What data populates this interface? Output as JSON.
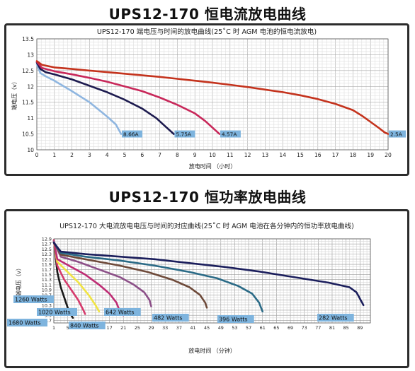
{
  "page": {
    "title1": "UPS12-170 恒电流放电曲线",
    "title2": "UPS12-170 恒功率放电曲线"
  },
  "chart_data": [
    {
      "type": "line",
      "title": "UPS12-170 端电压与时间的放电曲线(25˚C 时 AGM 电池的恒电流放电)",
      "xlabel": "放电时间 （小时）",
      "ylabel": "端电压（v）",
      "xlim": [
        0,
        20
      ],
      "ylim": [
        10,
        13.5
      ],
      "x_ticks": [
        0,
        1,
        2,
        3,
        4,
        5,
        6,
        7,
        8,
        9,
        10,
        11,
        12,
        13,
        14,
        15,
        16,
        17,
        18,
        19,
        20
      ],
      "y_ticks": [
        10,
        10.5,
        11,
        11.5,
        12,
        12.5,
        13,
        13.5
      ],
      "grid": true,
      "series": [
        {
          "name": "8.66A",
          "color": "#8fb6e0",
          "points": [
            [
              0,
              12.7
            ],
            [
              0.2,
              12.42
            ],
            [
              0.5,
              12.32
            ],
            [
              1,
              12.18
            ],
            [
              2,
              11.85
            ],
            [
              3,
              11.5
            ],
            [
              4,
              11.05
            ],
            [
              4.5,
              10.8
            ],
            [
              4.8,
              10.5
            ]
          ]
        },
        {
          "name": "5.75A",
          "color": "#1d1b4f",
          "points": [
            [
              0,
              12.75
            ],
            [
              0.2,
              12.55
            ],
            [
              0.5,
              12.45
            ],
            [
              1,
              12.38
            ],
            [
              2,
              12.22
            ],
            [
              3,
              12.02
            ],
            [
              4,
              11.82
            ],
            [
              5,
              11.58
            ],
            [
              6,
              11.3
            ],
            [
              6.8,
              11.0
            ],
            [
              7.3,
              10.75
            ],
            [
              7.8,
              10.5
            ]
          ]
        },
        {
          "name": "4.57A",
          "color": "#c8285a",
          "points": [
            [
              0,
              12.78
            ],
            [
              0.3,
              12.58
            ],
            [
              1,
              12.48
            ],
            [
              2,
              12.38
            ],
            [
              3,
              12.27
            ],
            [
              4,
              12.15
            ],
            [
              5,
              12.0
            ],
            [
              6,
              11.85
            ],
            [
              7,
              11.65
            ],
            [
              8,
              11.42
            ],
            [
              9,
              11.15
            ],
            [
              9.6,
              10.9
            ],
            [
              10,
              10.7
            ],
            [
              10.4,
              10.5
            ]
          ]
        },
        {
          "name": "2.5A",
          "color": "#c4331d",
          "points": [
            [
              0,
              12.8
            ],
            [
              0.3,
              12.68
            ],
            [
              1,
              12.6
            ],
            [
              2,
              12.55
            ],
            [
              3,
              12.5
            ],
            [
              4,
              12.45
            ],
            [
              5,
              12.4
            ],
            [
              6,
              12.35
            ],
            [
              7,
              12.3
            ],
            [
              8,
              12.24
            ],
            [
              9,
              12.18
            ],
            [
              10,
              12.12
            ],
            [
              11,
              12.05
            ],
            [
              12,
              11.98
            ],
            [
              13,
              11.9
            ],
            [
              14,
              11.82
            ],
            [
              15,
              11.72
            ],
            [
              16,
              11.6
            ],
            [
              17,
              11.45
            ],
            [
              18,
              11.25
            ],
            [
              18.5,
              11.08
            ],
            [
              19,
              10.88
            ],
            [
              19.5,
              10.68
            ],
            [
              19.8,
              10.55
            ],
            [
              20,
              10.5
            ]
          ]
        }
      ]
    },
    {
      "type": "line",
      "title": "UPS12-170 大电流放电电压与时间的对应曲线(25˚C 时 AGM 电池在各分钟内的恒功率放电曲线)",
      "xlabel": "放电时间 （分钟）",
      "ylabel": "端电压（v）",
      "ylim": [
        9.6,
        12.9
      ],
      "x_ticks": [
        "1",
        "5",
        "9",
        "13",
        "17",
        "21",
        "25",
        "29",
        "33",
        "37",
        "41",
        "45",
        "49",
        "53",
        "57",
        "61",
        "65",
        "69",
        "73",
        "77",
        "81",
        "85",
        "89"
      ],
      "y_ticks": [
        "9.7",
        "9.9",
        "10.1",
        "10.3",
        "10.5",
        "10.7",
        "10.9",
        "11.1",
        "11.3",
        "11.5",
        "11.7",
        "11.9",
        "12.1",
        "12.3",
        "12.5",
        "12.7",
        "12.9"
      ],
      "grid": true,
      "series": [
        {
          "name": "1680 Watts",
          "color": "#1a1a1a",
          "points": [
            [
              1,
              12.85
            ],
            [
              2,
              11.6
            ],
            [
              3,
              11.0
            ],
            [
              4,
              10.6
            ],
            [
              5,
              10.2
            ],
            [
              6,
              9.9
            ],
            [
              6.5,
              9.8
            ]
          ]
        },
        {
          "name": "1260 Watts",
          "color": "#d63a6c",
          "points": [
            [
              1,
              12.85
            ],
            [
              2,
              11.85
            ],
            [
              4,
              11.3
            ],
            [
              6,
              10.9
            ],
            [
              8,
              10.5
            ],
            [
              9.5,
              10.1
            ],
            [
              10,
              9.95
            ]
          ]
        },
        {
          "name": "1020 Watts",
          "color": "#f1e443",
          "points": [
            [
              1,
              12.8
            ],
            [
              2,
              12.0
            ],
            [
              5,
              11.6
            ],
            [
              8,
              11.2
            ],
            [
              11,
              10.7
            ],
            [
              13,
              10.3
            ],
            [
              14,
              10.05
            ]
          ]
        },
        {
          "name": "840 Watts",
          "color": "#be2c74",
          "points": [
            [
              1,
              12.8
            ],
            [
              2,
              12.1
            ],
            [
              6,
              11.8
            ],
            [
              10,
              11.5
            ],
            [
              14,
              11.1
            ],
            [
              17,
              10.75
            ],
            [
              19,
              10.4
            ],
            [
              20,
              10.05
            ],
            [
              21,
              9.9
            ]
          ]
        },
        {
          "name": "642 Watts",
          "color": "#8c5088",
          "points": [
            [
              1,
              12.8
            ],
            [
              3,
              12.2
            ],
            [
              8,
              12.0
            ],
            [
              14,
              11.7
            ],
            [
              20,
              11.4
            ],
            [
              24,
              11.1
            ],
            [
              27,
              10.8
            ],
            [
              28.5,
              10.5
            ],
            [
              29,
              10.25
            ]
          ]
        },
        {
          "name": "482 Watts",
          "color": "#6e4a3a",
          "points": [
            [
              1,
              12.75
            ],
            [
              3,
              12.28
            ],
            [
              10,
              12.1
            ],
            [
              20,
              11.85
            ],
            [
              28,
              11.6
            ],
            [
              35,
              11.3
            ],
            [
              40,
              11.0
            ],
            [
              43,
              10.7
            ],
            [
              44.5,
              10.4
            ],
            [
              45,
              10.2
            ]
          ]
        },
        {
          "name": "396 Watts",
          "color": "#2a6a86",
          "points": [
            [
              1,
              12.75
            ],
            [
              3,
              12.35
            ],
            [
              10,
              12.2
            ],
            [
              20,
              12.05
            ],
            [
              30,
              11.85
            ],
            [
              40,
              11.6
            ],
            [
              48,
              11.35
            ],
            [
              54,
              11.05
            ],
            [
              58,
              10.75
            ],
            [
              60,
              10.4
            ],
            [
              61,
              10.05
            ]
          ]
        },
        {
          "name": "282 Watts",
          "color": "#1b1e5c",
          "points": [
            [
              1,
              12.75
            ],
            [
              3,
              12.4
            ],
            [
              10,
              12.3
            ],
            [
              20,
              12.2
            ],
            [
              30,
              12.1
            ],
            [
              40,
              11.95
            ],
            [
              50,
              11.8
            ],
            [
              60,
              11.62
            ],
            [
              70,
              11.4
            ],
            [
              80,
              11.18
            ],
            [
              86,
              11.0
            ],
            [
              88,
              10.8
            ],
            [
              89,
              10.55
            ],
            [
              90,
              10.3
            ]
          ]
        }
      ]
    }
  ]
}
